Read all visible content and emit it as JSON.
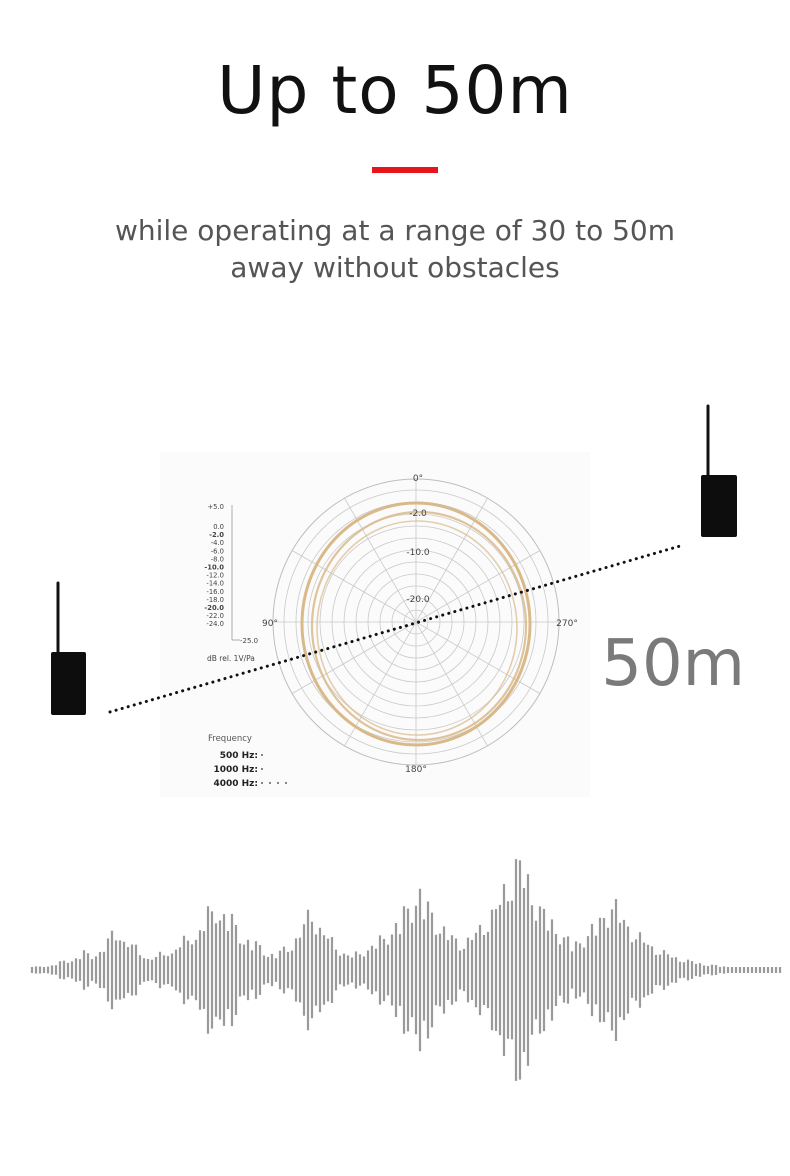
{
  "header": {
    "title": "Up to 50m",
    "subtitle_line1": "while operating at a range of 30 to 50m",
    "subtitle_line2": "away without obstacles",
    "accent_color": "#e8141b"
  },
  "polar_chart": {
    "angle_labels": {
      "top": "0°",
      "left": "90°",
      "right": "270°",
      "bottom": "180°"
    },
    "ring_labels": [
      "-2.0",
      "-10.0",
      "-20.0"
    ],
    "db_scale": [
      "+5.0",
      "0.0",
      "-2.0",
      "-4.0",
      "-6.0",
      "-8.0",
      "-10.0",
      "-12.0",
      "-14.0",
      "-16.0",
      "-18.0",
      "-20.0",
      "-22.0",
      "-24.0"
    ],
    "scale_min_label": "-25.0",
    "unit_label": "dB rel. 1V/Pa",
    "legend_title": "Frequency",
    "legend_items": [
      "500 Hz:",
      "1000 Hz:",
      "4000 Hz:"
    ],
    "pattern_color": "#d9b98a"
  },
  "distance_label": "50m",
  "icons": [
    "transmitter-icon",
    "receiver-icon",
    "sound-wave-graphic"
  ]
}
